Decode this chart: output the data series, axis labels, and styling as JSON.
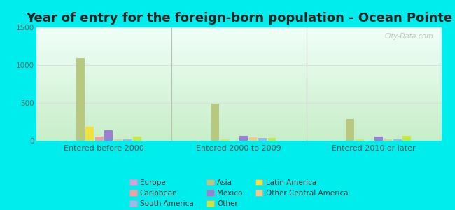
{
  "title": "Year of entry for the foreign-born population - Ocean Pointe",
  "categories": [
    "Entered before 2000",
    "Entered 2000 to 2009",
    "Entered 2010 or later"
  ],
  "series_order": [
    "Europe",
    "Asia",
    "Latin America",
    "Caribbean",
    "Mexico",
    "Other Central America",
    "South America",
    "Other"
  ],
  "series": {
    "Europe": [
      0,
      0,
      0
    ],
    "Asia": [
      1090,
      490,
      290
    ],
    "Latin America": [
      185,
      20,
      20
    ],
    "Caribbean": [
      55,
      0,
      0
    ],
    "Mexico": [
      135,
      65,
      55
    ],
    "Other Central America": [
      15,
      50,
      15
    ],
    "South America": [
      20,
      35,
      15
    ],
    "Other": [
      60,
      40,
      65
    ]
  },
  "colors": {
    "Europe": "#d8a0e0",
    "Asia": "#b8c880",
    "Latin America": "#f0e040",
    "Caribbean": "#f4a0a0",
    "Mexico": "#9b7fd4",
    "Other Central America": "#f5c888",
    "South America": "#a0b8e8",
    "Other": "#c8e840"
  },
  "legend_order": [
    [
      "Europe",
      "Asia",
      "Latin America"
    ],
    [
      "Caribbean",
      "Mexico",
      "Other Central America"
    ],
    [
      "South America",
      "Other",
      ""
    ]
  ],
  "ylim": [
    0,
    1500
  ],
  "yticks": [
    0,
    500,
    1000,
    1500
  ],
  "fig_bg": "#00eded",
  "plot_bg_top": "#c8eec8",
  "plot_bg_bottom": "#f0fff8",
  "title_fontsize": 13,
  "watermark": "City-Data.com",
  "bar_width": 0.07,
  "divider_color": "#bbbbbb",
  "grid_color": "#dddddd"
}
